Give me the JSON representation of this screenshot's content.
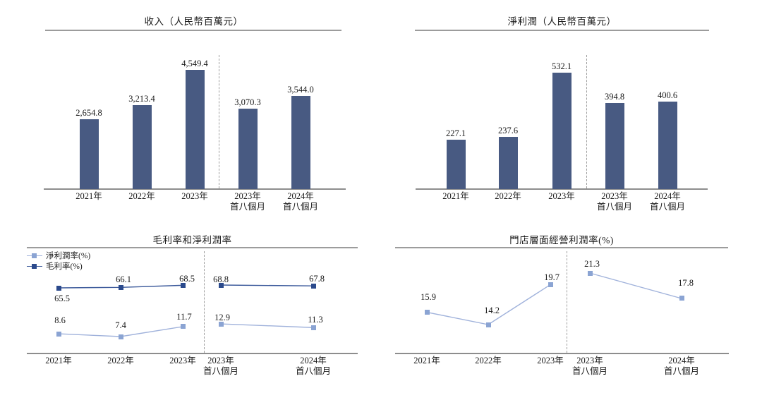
{
  "page": {
    "background": "#ffffff"
  },
  "colors": {
    "bar": "#485a82",
    "net_margin": "#8ba4d3",
    "net_margin_line": "#a0b2db",
    "gross_margin": "#2b4a8c",
    "gross_margin_line": "#3c5a9b",
    "store_margin": "#8ba4d3",
    "store_margin_line": "#a0b2db",
    "axis_line": "#8d8d8d",
    "title_rule": "#9c9c9c",
    "separator": "#9e9e9e",
    "text": "#1a1a1a"
  },
  "chart_data": [
    {
      "type": "bar",
      "title": "收入（人民幣百萬元）",
      "categories": [
        [
          "2021年"
        ],
        [
          "2022年"
        ],
        [
          "2023年"
        ],
        [
          "2023年",
          "首八個月"
        ],
        [
          "2024年",
          "首八個月"
        ]
      ],
      "values": [
        2654.8,
        3213.4,
        4549.4,
        3070.3,
        3544.0
      ],
      "value_labels": [
        "2,654.8",
        "3,213.4",
        "4,549.4",
        "3,070.3",
        "3,544.0"
      ],
      "ylim": [
        0,
        4800
      ],
      "separator_after": "2023年",
      "legend_position": "none"
    },
    {
      "type": "bar",
      "title": "淨利潤（人民幣百萬元）",
      "categories": [
        [
          "2021年"
        ],
        [
          "2022年"
        ],
        [
          "2023年"
        ],
        [
          "2023年",
          "首八個月"
        ],
        [
          "2024年",
          "首八個月"
        ]
      ],
      "values": [
        227.1,
        237.6,
        532.1,
        394.8,
        400.6
      ],
      "value_labels": [
        "227.1",
        "237.6",
        "532.1",
        "394.8",
        "400.6"
      ],
      "ylim": [
        0,
        560
      ],
      "separator_after": "2023年",
      "legend_position": "none"
    },
    {
      "type": "line",
      "title": "毛利率和淨利潤率",
      "categories": [
        [
          "2021年"
        ],
        [
          "2022年"
        ],
        [
          "2023年"
        ],
        [
          "2023年",
          "首八個月"
        ],
        [
          "2024年",
          "首八個月"
        ]
      ],
      "series": [
        {
          "name": "淨利潤率(%)",
          "values": [
            8.6,
            7.4,
            11.7,
            12.9,
            11.3
          ],
          "value_labels": [
            "8.6",
            "7.4",
            "11.7",
            "12.9",
            "11.3"
          ]
        },
        {
          "name": "毛利率(%)",
          "values": [
            65.5,
            66.1,
            68.5,
            68.8,
            67.8
          ],
          "value_labels": [
            "65.5",
            "66.1",
            "68.5",
            "68.8",
            "67.8"
          ]
        }
      ],
      "separator_after": "2023年",
      "legend_position": "top-left"
    },
    {
      "type": "line",
      "title": "門店層面經營利潤率(%)",
      "categories": [
        [
          "2021年"
        ],
        [
          "2022年"
        ],
        [
          "2023年"
        ],
        [
          "2023年",
          "首八個月"
        ],
        [
          "2024年",
          "首八個月"
        ]
      ],
      "series": [
        {
          "name": "門店層面經營利潤率(%)",
          "values": [
            15.9,
            14.2,
            19.7,
            21.3,
            17.8
          ],
          "value_labels": [
            "15.9",
            "14.2",
            "19.7",
            "21.3",
            "17.8"
          ]
        }
      ],
      "separator_after": "2023年",
      "legend_position": "none"
    }
  ]
}
